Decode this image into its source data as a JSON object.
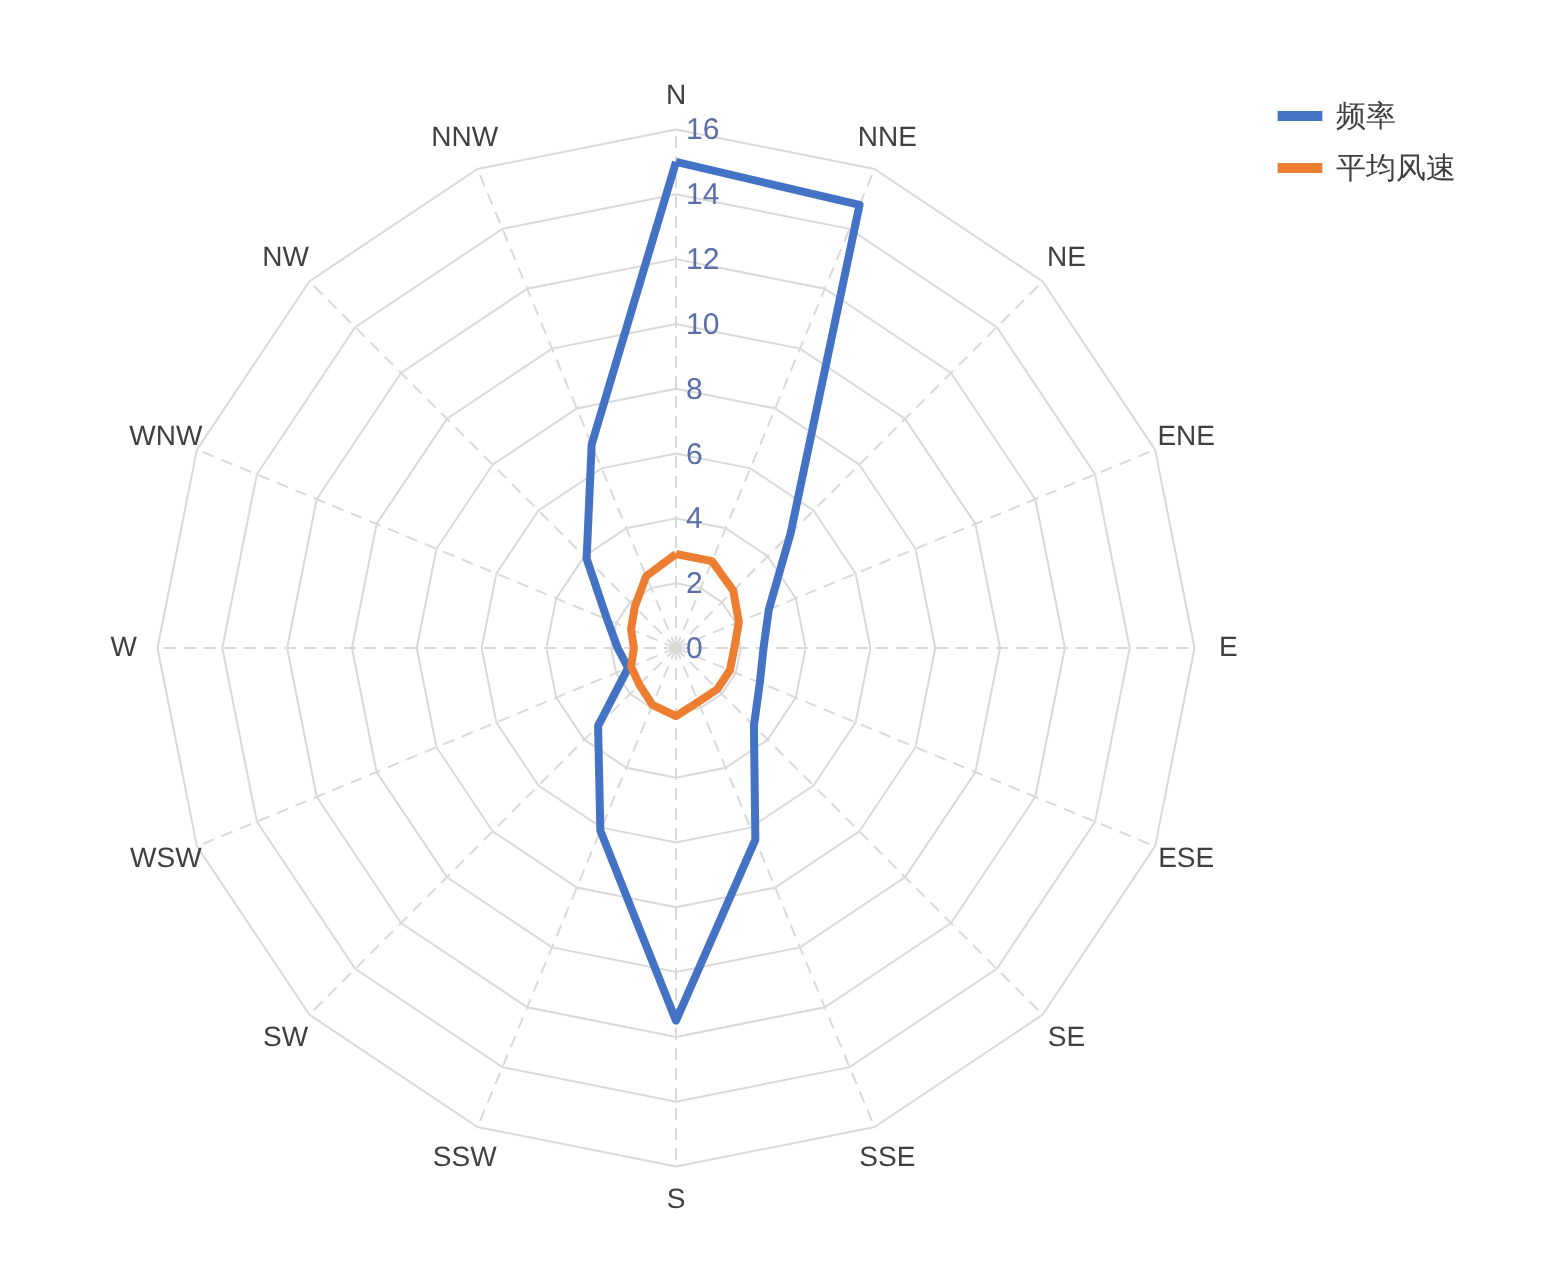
{
  "chart_data": {
    "type": "radar",
    "categories": [
      "N",
      "NNE",
      "NE",
      "ENE",
      "E",
      "ESE",
      "SE",
      "SSE",
      "S",
      "SSW",
      "SW",
      "WSW",
      "W",
      "WNW",
      "NW",
      "NNW"
    ],
    "series": [
      {
        "name": "频率",
        "color": "#4472c4",
        "values": [
          15.0,
          14.8,
          5.0,
          3.1,
          2.7,
          2.8,
          3.4,
          6.4,
          11.5,
          6.1,
          3.4,
          1.6,
          1.8,
          2.3,
          3.9,
          6.8
        ]
      },
      {
        "name": "平均风速",
        "color": "#ed7d31",
        "values": [
          2.9,
          2.9,
          2.5,
          2.1,
          1.8,
          1.8,
          1.8,
          1.8,
          2.1,
          1.9,
          1.6,
          1.5,
          1.3,
          1.5,
          1.8,
          2.4
        ]
      }
    ],
    "ylim": [
      0,
      16
    ],
    "yticks": [
      0,
      2,
      4,
      6,
      8,
      10,
      12,
      14,
      16
    ],
    "grid": true,
    "legend": "right",
    "line_style": "solid",
    "marker": "none"
  }
}
